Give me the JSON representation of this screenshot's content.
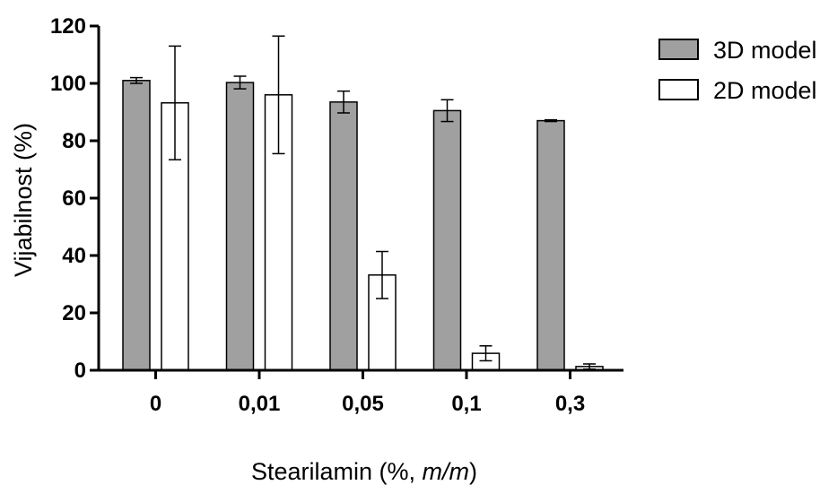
{
  "chart_data": {
    "type": "bar",
    "title": "",
    "xlabel": "Stearilamin (%, ",
    "xlabel_italic": "m/m",
    "xlabel_end": ")",
    "ylabel": "Vijabilnost (%)",
    "ylim": [
      0,
      120
    ],
    "yticks": [
      0,
      20,
      40,
      60,
      80,
      100,
      120
    ],
    "grid": false,
    "legend_position": "top-right",
    "categories": [
      "0",
      "0,01",
      "0,05",
      "0,1",
      "0,3"
    ],
    "series": [
      {
        "name": "3D model",
        "color": "#a0a0a0",
        "values": [
          101,
          100.3,
          93.5,
          90.5,
          87
        ],
        "errors": [
          1,
          2.2,
          3.8,
          3.8,
          0.3
        ]
      },
      {
        "name": "2D model",
        "color": "#ffffff",
        "values": [
          93.2,
          96,
          33.2,
          5.9,
          1.3
        ],
        "errors": [
          19.8,
          20.5,
          8.2,
          2.6,
          0.9
        ]
      }
    ]
  }
}
